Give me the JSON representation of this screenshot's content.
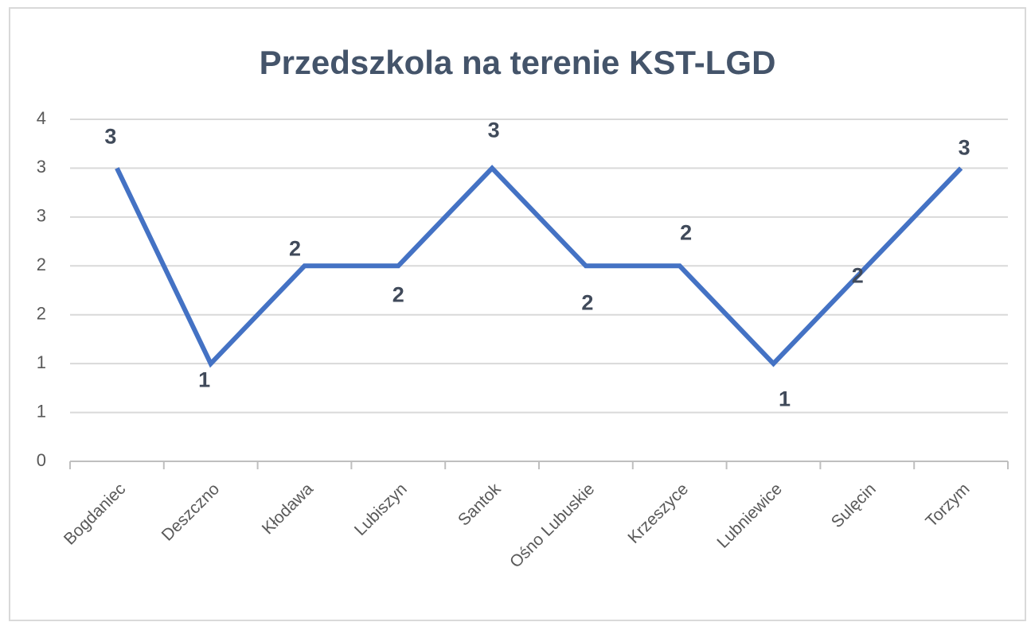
{
  "chart_data": {
    "type": "line",
    "title": "Przedszkola na terenie KST-LGD",
    "categories": [
      "Bogdaniec",
      "Deszczno",
      "Kłodawa",
      "Lubiszyn",
      "Santok",
      "Ośno Lubuskie",
      "Krzeszyce",
      "Lubniewice",
      "Sulęcin",
      "Torzym"
    ],
    "series": [
      {
        "name": "Przedszkola",
        "color": "#4472c4",
        "values": [
          3,
          1,
          2,
          2,
          3,
          2,
          2,
          1,
          2,
          3
        ]
      }
    ],
    "ylim": [
      0,
      3.5
    ],
    "yticks": [
      0,
      {
        "value": 0.5,
        "label": "1"
      },
      1,
      {
        "value": 1.5,
        "label": "2"
      },
      2,
      {
        "value": 2.5,
        "label": "3"
      },
      3,
      {
        "value": 3.5,
        "label": "4"
      }
    ],
    "grid": true
  }
}
